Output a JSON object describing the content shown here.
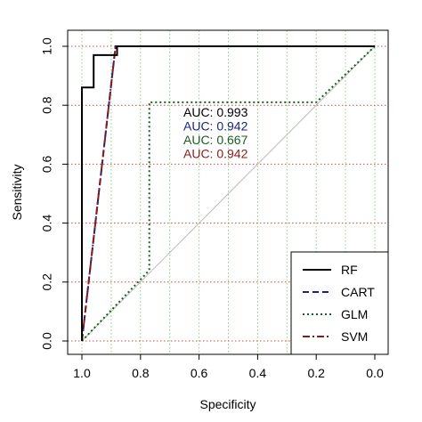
{
  "chart_data": {
    "type": "line",
    "title": "",
    "xlabel": "Specificity",
    "ylabel": "Sensitivity",
    "xlim": [
      1.0,
      0.0
    ],
    "ylim": [
      0.0,
      1.0
    ],
    "x_reversed": true,
    "x_ticks": [
      1.0,
      0.8,
      0.6,
      0.4,
      0.2,
      0.0
    ],
    "x_tick_labels": [
      "1.0",
      "0.8",
      "0.6",
      "0.4",
      "0.2",
      "0.0"
    ],
    "y_ticks": [
      0.0,
      0.2,
      0.4,
      0.6,
      0.8,
      1.0
    ],
    "y_tick_labels": [
      "0.0",
      "0.2",
      "0.4",
      "0.6",
      "0.8",
      "1.0"
    ],
    "grid": {
      "vertical": {
        "at": [
          1.0,
          0.9,
          0.8,
          0.7,
          0.6,
          0.5,
          0.4,
          0.3,
          0.2,
          0.1,
          0.0
        ],
        "color": "#7fd17f",
        "style": "dotted"
      },
      "horizontal": {
        "at": [
          0.0,
          0.2,
          0.4,
          0.6,
          0.8,
          1.0
        ],
        "color": "#d04a4a",
        "style": "dotted"
      }
    },
    "reference_line": {
      "points": [
        [
          1.0,
          0.0
        ],
        [
          0.0,
          1.0
        ]
      ],
      "color": "#bbbbbb"
    },
    "series": [
      {
        "name": "RF",
        "color": "#000000",
        "dash": "solid",
        "points": [
          [
            1.0,
            0.0
          ],
          [
            1.0,
            0.86
          ],
          [
            0.96,
            0.86
          ],
          [
            0.96,
            0.97
          ],
          [
            0.88,
            0.97
          ],
          [
            0.88,
            1.0
          ],
          [
            0.0,
            1.0
          ]
        ]
      },
      {
        "name": "CART",
        "color": "#1a237e",
        "dash": "dashed",
        "points": [
          [
            1.0,
            0.0
          ],
          [
            0.885,
            1.0
          ],
          [
            0.0,
            1.0
          ]
        ]
      },
      {
        "name": "GLM",
        "color": "#1b5e20",
        "dash": "dotted",
        "points": [
          [
            1.0,
            0.0
          ],
          [
            0.77,
            0.24
          ],
          [
            0.77,
            0.81
          ],
          [
            0.2,
            0.81
          ],
          [
            0.0,
            1.0
          ]
        ]
      },
      {
        "name": "SVM",
        "color": "#8b1a1a",
        "dash": "dashdot",
        "points": [
          [
            1.0,
            0.0
          ],
          [
            0.885,
            1.0
          ],
          [
            0.0,
            1.0
          ]
        ]
      }
    ],
    "annotations": [
      {
        "text": "AUC: 0.993",
        "color": "#000000"
      },
      {
        "text": "AUC: 0.942",
        "color": "#1a237e"
      },
      {
        "text": "AUC: 0.667",
        "color": "#1b5e20"
      },
      {
        "text": "AUC: 0.942",
        "color": "#8b1a1a"
      }
    ],
    "legend": {
      "placement": "bottom-right",
      "entries": [
        "RF",
        "CART",
        "GLM",
        "SVM"
      ]
    }
  }
}
